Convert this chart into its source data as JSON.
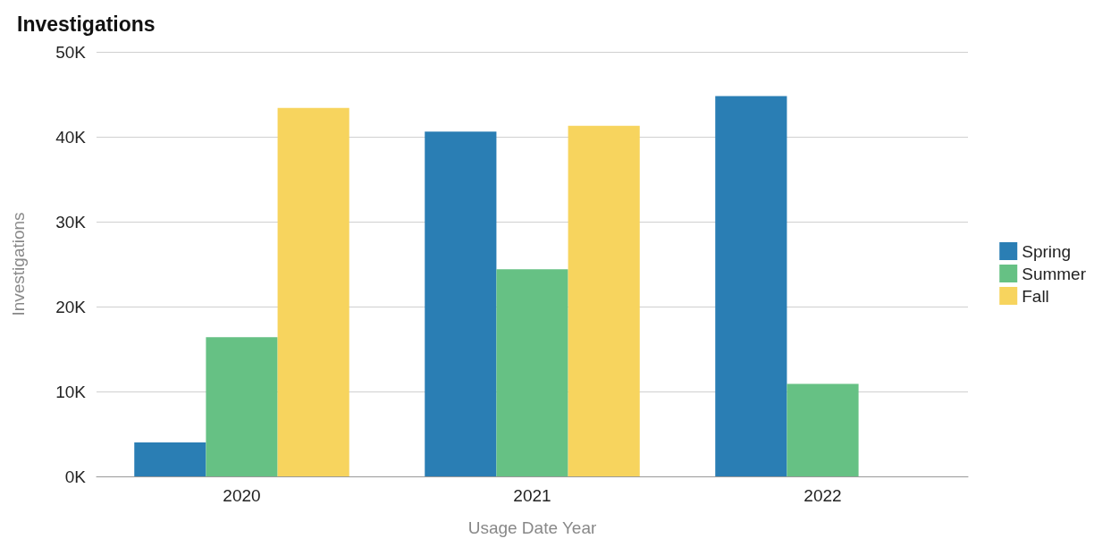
{
  "chart_data": {
    "type": "bar",
    "title": "Investigations",
    "xlabel": "Usage Date Year",
    "ylabel": "Investigations",
    "categories": [
      "2020",
      "2021",
      "2022"
    ],
    "series": [
      {
        "name": "Spring",
        "color": "#2a7eb4",
        "values": [
          4000,
          40600,
          44800
        ]
      },
      {
        "name": "Summer",
        "color": "#66c184",
        "values": [
          16400,
          24400,
          10900
        ]
      },
      {
        "name": "Fall",
        "color": "#f7d45e",
        "values": [
          43400,
          41300,
          null
        ]
      }
    ],
    "ylim": [
      0,
      50000
    ],
    "yticks": [
      {
        "value": 0,
        "label": "0K"
      },
      {
        "value": 10000,
        "label": "10K"
      },
      {
        "value": 20000,
        "label": "20K"
      },
      {
        "value": 30000,
        "label": "30K"
      },
      {
        "value": 40000,
        "label": "40K"
      },
      {
        "value": 50000,
        "label": "50K"
      }
    ],
    "grid": "y",
    "legend": "right"
  }
}
